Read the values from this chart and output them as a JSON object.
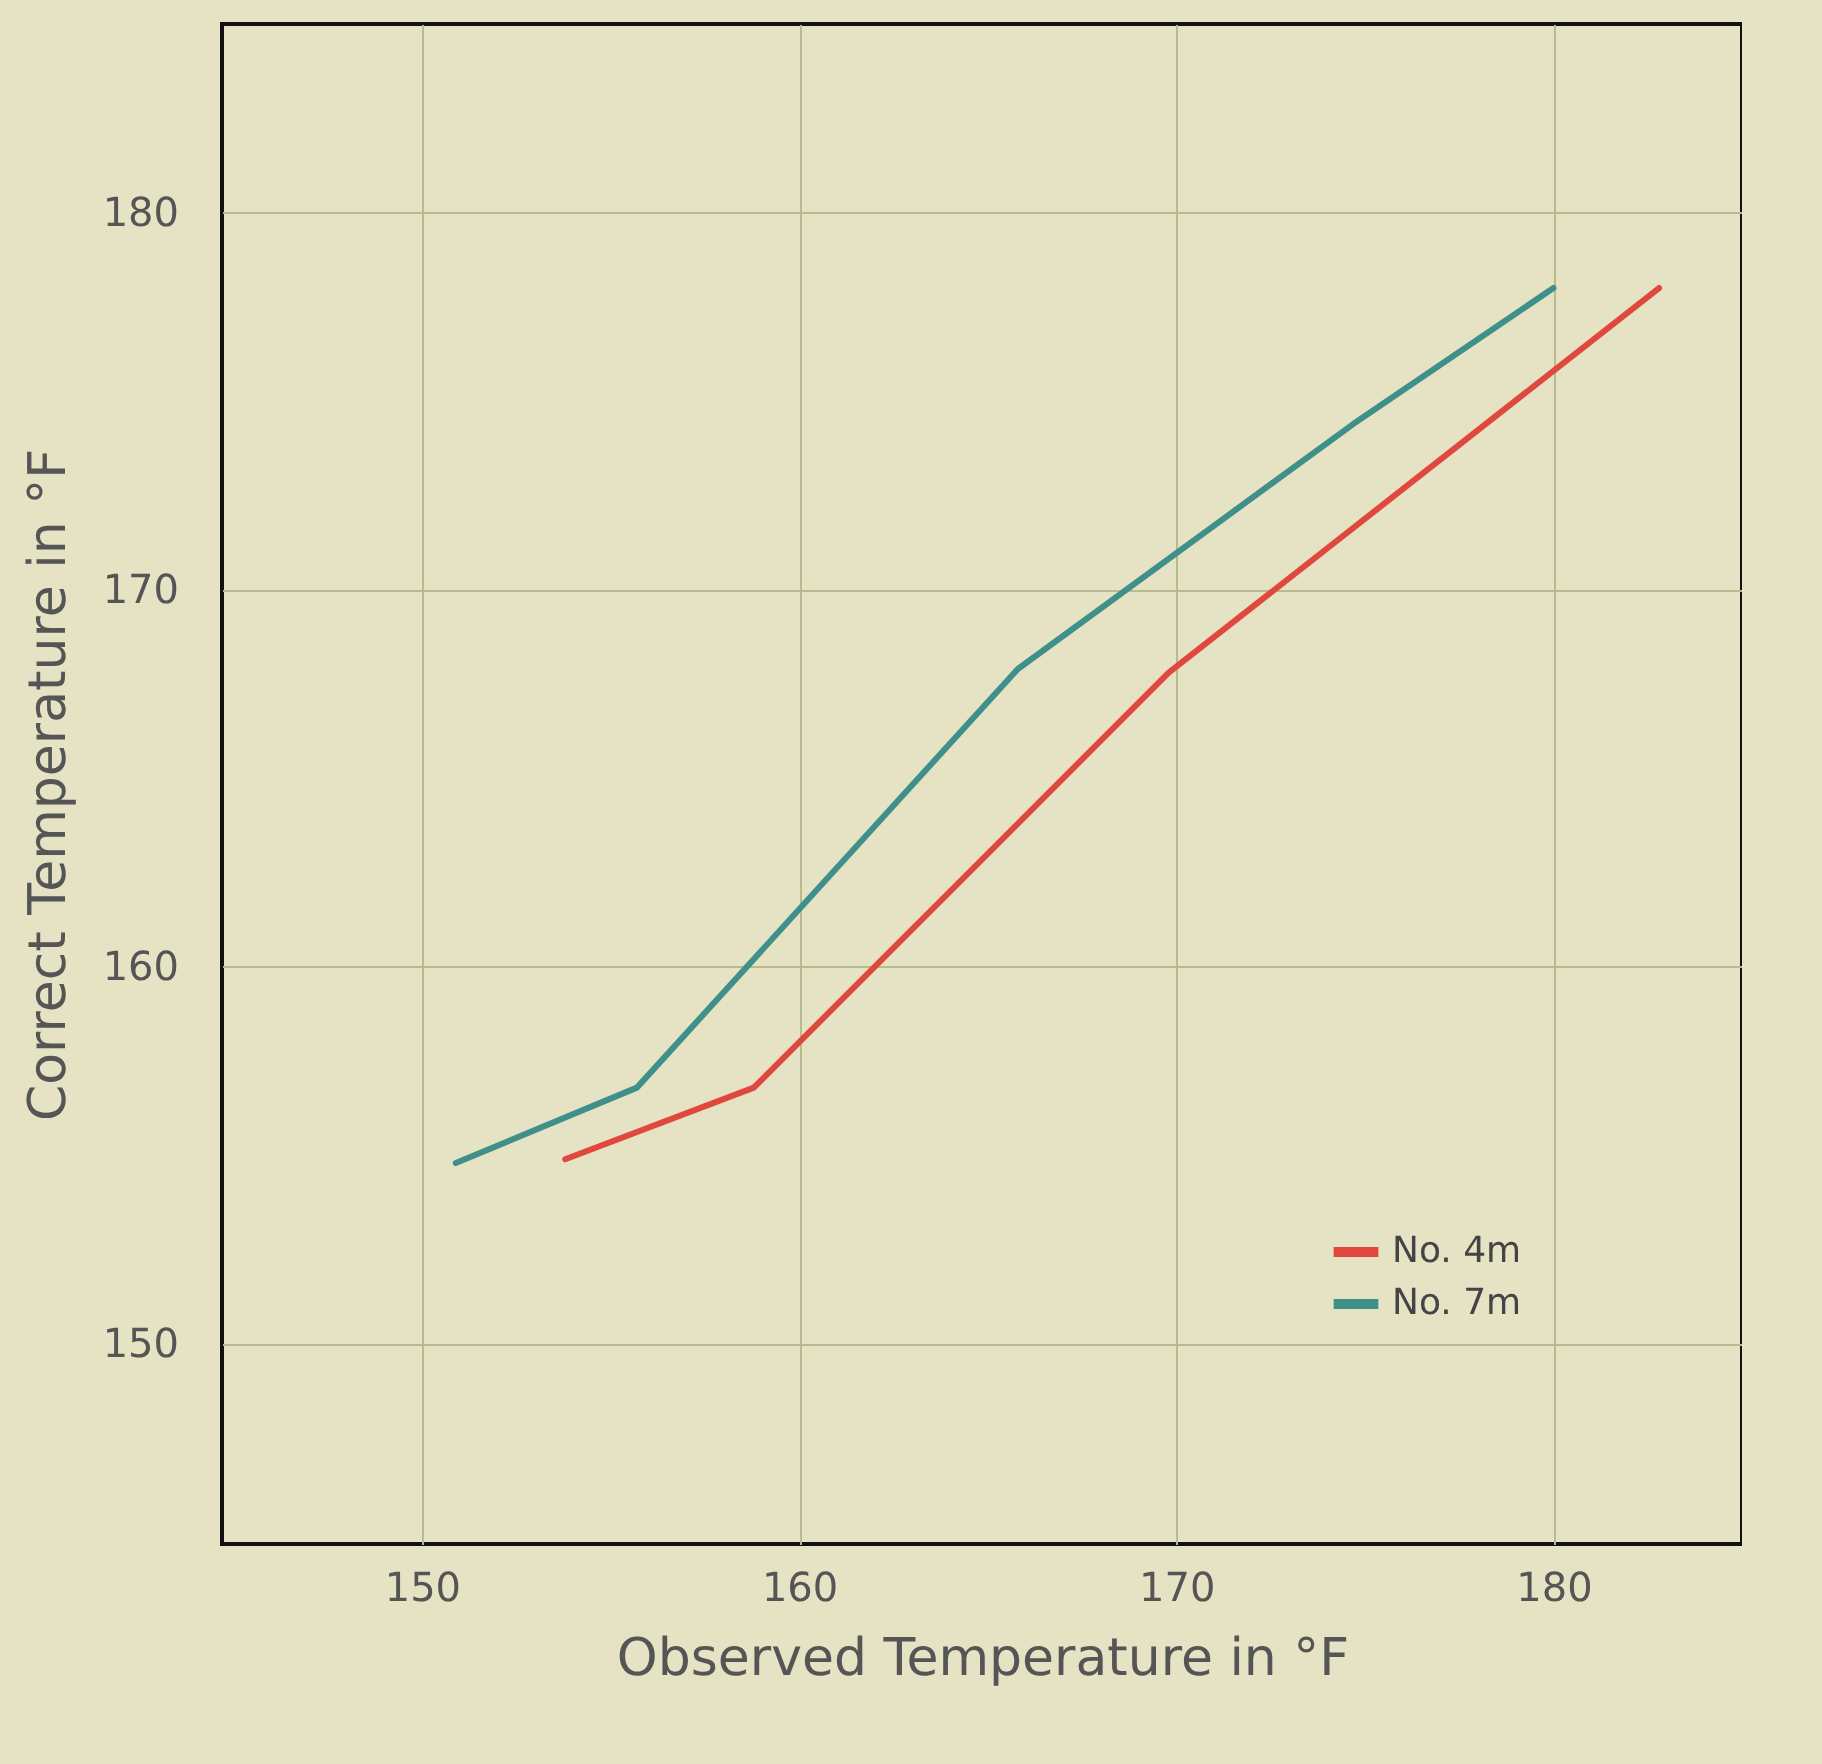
{
  "chart_data": {
    "type": "line",
    "xlabel": "Observed Temperature in °F",
    "ylabel": "Correct Temperature in °F",
    "xlim": [
      144.7,
      185
    ],
    "ylim": [
      144.7,
      185
    ],
    "xticks": [
      150,
      160,
      170,
      180
    ],
    "yticks": [
      150,
      160,
      170,
      180
    ],
    "grid": true,
    "legend": "bottom right",
    "marker": "none",
    "line_style": "solid",
    "series": [
      {
        "name": "No. 4m",
        "color": "#e0483e",
        "x": [
          153.8,
          158.8,
          169.8,
          182.8
        ],
        "values": [
          154.9,
          156.8,
          167.8,
          178
        ]
      },
      {
        "name": "No. 7m",
        "color": "#3f8f8a",
        "x": [
          150.9,
          155.7,
          165.8,
          174.7,
          180
        ],
        "values": [
          154.8,
          156.8,
          167.9,
          174.4,
          178
        ]
      }
    ]
  }
}
